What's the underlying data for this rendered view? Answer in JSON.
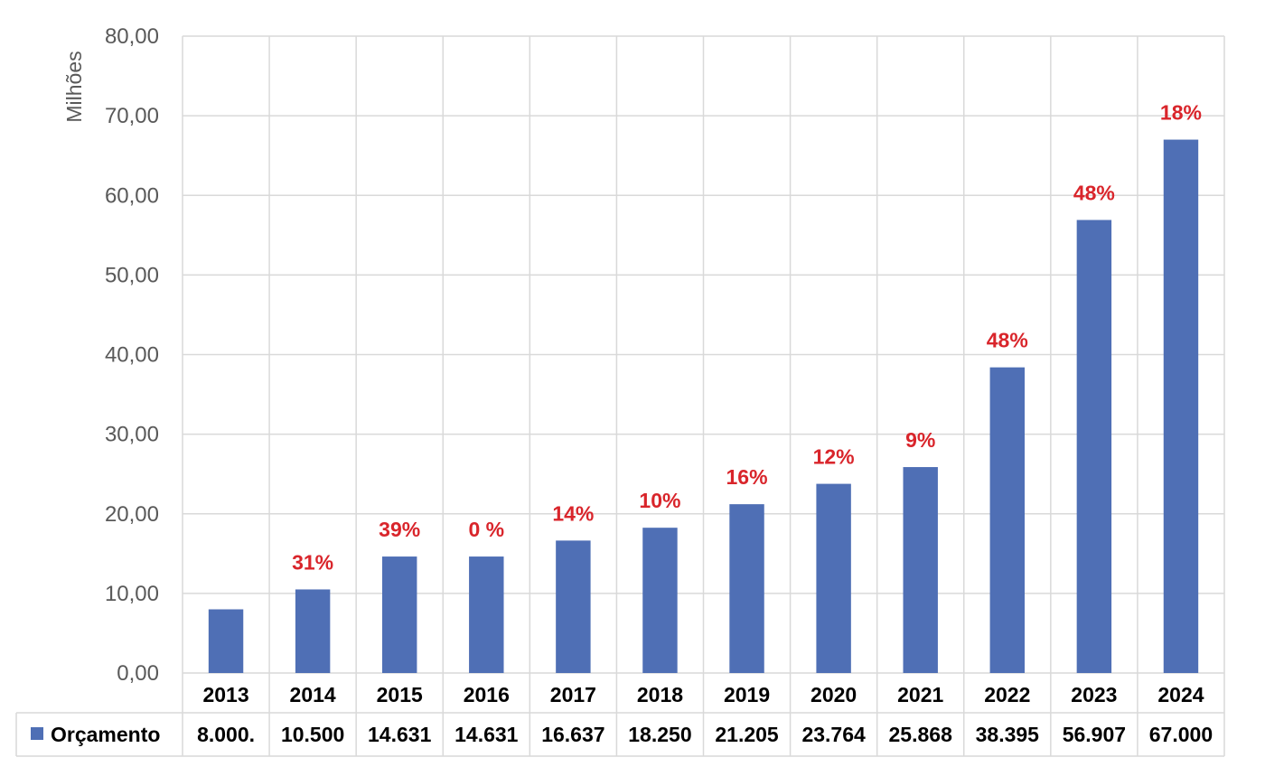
{
  "chart_data": {
    "type": "bar",
    "ylabel": "Milhões",
    "ylim": [
      0,
      80
    ],
    "yticks": [
      "0,00",
      "10,00",
      "20,00",
      "30,00",
      "40,00",
      "50,00",
      "60,00",
      "70,00",
      "80,00"
    ],
    "categories": [
      "2013",
      "2014",
      "2015",
      "2016",
      "2017",
      "2018",
      "2019",
      "2020",
      "2021",
      "2022",
      "2023",
      "2024"
    ],
    "series": [
      {
        "name": "Orçamento",
        "values": [
          8.0,
          10.5,
          14.631,
          14.631,
          16.637,
          18.25,
          21.205,
          23.764,
          25.868,
          38.395,
          56.907,
          67.0
        ],
        "table_labels": [
          "8.000.",
          "10.500",
          "14.631",
          "14.631",
          "16.637",
          "18.250",
          "21.205",
          "23.764",
          "25.868",
          "38.395",
          "56.907",
          "67.000"
        ],
        "annotations": [
          "",
          "31%",
          "39%",
          "0 %",
          "14%",
          "10%",
          "16%",
          "12%",
          "9%",
          "48%",
          "48%",
          "18%"
        ]
      }
    ],
    "grid": true,
    "legend": "data-table-left",
    "colors": {
      "bar": "#4f6fb5",
      "annotation": "#d9252b",
      "grid": "#d9d9d9"
    }
  }
}
